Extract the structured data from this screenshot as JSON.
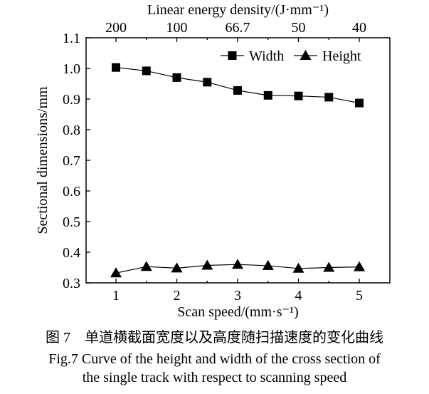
{
  "chart_data": {
    "type": "line",
    "xlabel": "Scan speed/(mm·s⁻¹)",
    "ylabel": "Sectional dimensions/mm",
    "top_xlabel": "Linear energy density/(J·mm⁻¹)",
    "x": [
      1,
      1.5,
      2,
      2.5,
      3,
      3.5,
      4,
      4.5,
      5
    ],
    "xticks": [
      "1",
      "2",
      "3",
      "4",
      "5"
    ],
    "top_xticks": [
      "200",
      "100",
      "66.7",
      "50",
      "40"
    ],
    "yticks": [
      "0.3",
      "0.4",
      "0.5",
      "0.6",
      "0.7",
      "0.8",
      "0.9",
      "1.0",
      "1.1"
    ],
    "xlim": [
      0.5,
      5.5
    ],
    "ylim": [
      0.3,
      1.1
    ],
    "grid": false,
    "legend": "top-right",
    "series": [
      {
        "name": "Width",
        "marker": "square",
        "values": [
          1.003,
          0.992,
          0.97,
          0.955,
          0.928,
          0.912,
          0.91,
          0.906,
          0.887
        ]
      },
      {
        "name": "Height",
        "marker": "triangle",
        "values": [
          0.332,
          0.353,
          0.348,
          0.357,
          0.36,
          0.356,
          0.347,
          0.35,
          0.352
        ]
      }
    ]
  },
  "caption": {
    "cn": "图 7　单道横截面宽度以及高度随扫描速度的变化曲线",
    "en1": "Fig.7 Curve of the height and width of the cross section of",
    "en2": "the single track with respect to scanning speed"
  }
}
